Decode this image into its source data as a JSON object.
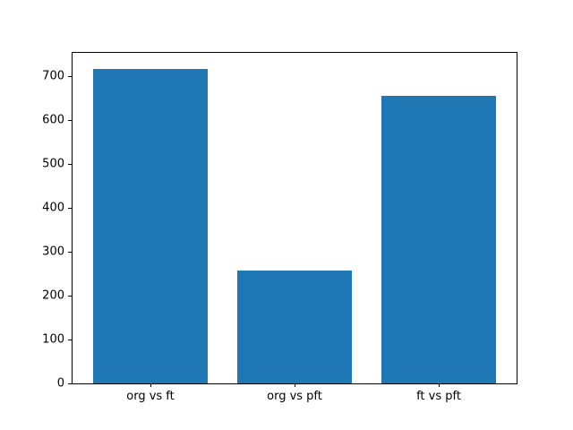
{
  "chart_data": {
    "type": "bar",
    "title": "",
    "xlabel": "",
    "ylabel": "",
    "categories": [
      "org vs ft",
      "org vs pft",
      "ft vs pft"
    ],
    "values": [
      717,
      257,
      656
    ],
    "yticks": [
      0,
      100,
      200,
      300,
      400,
      500,
      600,
      700
    ],
    "ylim": [
      0,
      753
    ],
    "xlim": [
      -0.54,
      2.54
    ],
    "bar_width": 0.8,
    "bar_color": "#1f77b4",
    "axis_color": "#000000",
    "background": "#ffffff",
    "grid": false,
    "legend": null
  }
}
